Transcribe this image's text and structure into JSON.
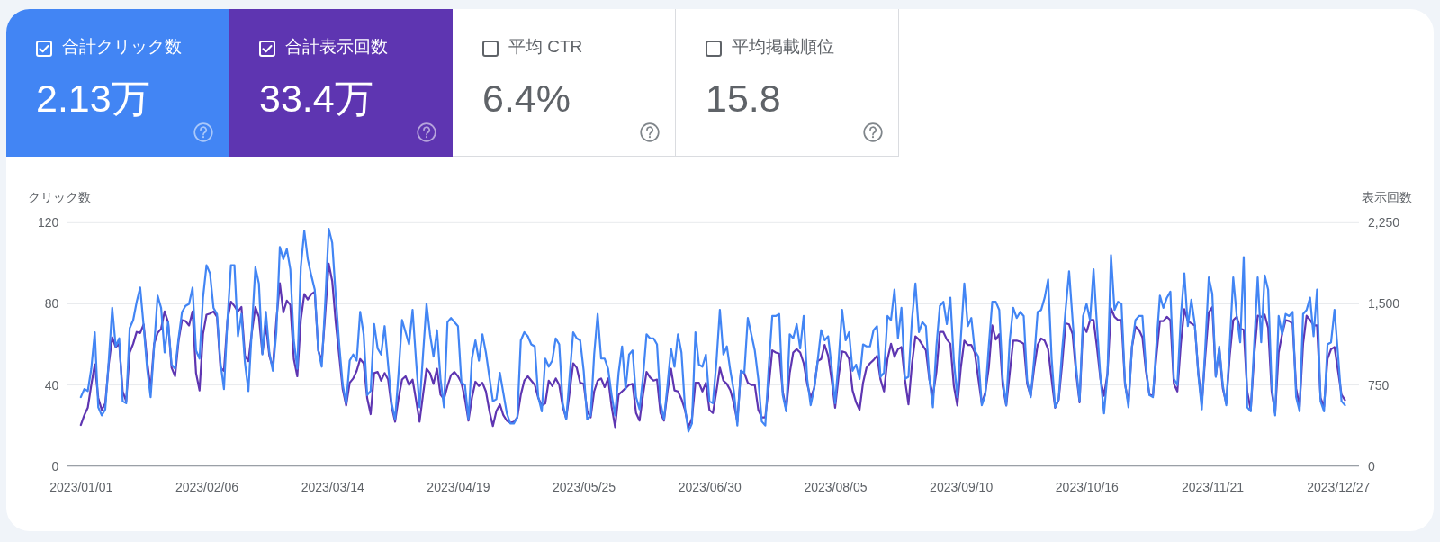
{
  "chart_data": [
    {
      "type": "other",
      "annotations": [
        "合計クリック数",
        "2.13万",
        "合計表示回数",
        "33.4万",
        "平均 CTR",
        "6.4%",
        "平均掲載順位",
        "15.8"
      ],
      "colors": [
        "#4285f4",
        "#5e35b1",
        "#ffffff",
        "#ffffff"
      ]
    },
    {
      "type": "line",
      "ylabel": "クリック数",
      "y2label": "表示回数",
      "x": [
        "2023-01-01",
        "2023-01-02",
        "2023-01-03",
        "2023-01-04",
        "2023-01-05",
        "2023-01-06",
        "2023-01-07",
        "2023-01-08",
        "2023-01-09",
        "2023-01-10",
        "2023-01-11",
        "2023-01-12",
        "2023-01-13",
        "2023-01-14",
        "2023-01-15",
        "2023-01-16",
        "2023-01-17",
        "2023-01-18",
        "2023-01-19",
        "2023-01-20",
        "2023-01-21",
        "2023-01-22",
        "2023-01-23",
        "2023-01-24",
        "2023-01-25",
        "2023-01-26",
        "2023-01-27",
        "2023-01-28",
        "2023-01-29",
        "2023-01-30",
        "2023-01-31",
        "2023-02-01",
        "2023-02-02",
        "2023-02-03",
        "2023-02-04",
        "2023-02-05",
        "2023-02-06",
        "2023-02-07",
        "2023-02-08",
        "2023-02-09",
        "2023-02-10",
        "2023-02-11",
        "2023-02-12",
        "2023-02-13",
        "2023-02-14",
        "2023-02-15",
        "2023-02-16",
        "2023-02-17",
        "2023-02-18",
        "2023-02-19",
        "2023-02-20",
        "2023-02-21",
        "2023-02-22",
        "2023-02-23",
        "2023-02-24",
        "2023-02-25",
        "2023-02-26",
        "2023-02-27",
        "2023-02-28",
        "2023-03-01",
        "2023-03-02",
        "2023-03-03",
        "2023-03-04",
        "2023-03-05",
        "2023-03-06",
        "2023-03-07",
        "2023-03-08",
        "2023-03-09",
        "2023-03-10",
        "2023-03-11",
        "2023-03-12",
        "2023-03-13",
        "2023-03-14",
        "2023-03-15",
        "2023-03-16",
        "2023-03-17",
        "2023-03-18",
        "2023-03-19",
        "2023-03-20",
        "2023-03-21",
        "2023-03-22",
        "2023-03-23",
        "2023-03-24",
        "2023-03-25",
        "2023-03-26",
        "2023-03-27",
        "2023-03-28",
        "2023-03-29",
        "2023-03-30",
        "2023-03-31",
        "2023-04-01",
        "2023-04-02",
        "2023-04-03",
        "2023-04-04",
        "2023-04-05",
        "2023-04-06",
        "2023-04-07",
        "2023-04-08",
        "2023-04-09",
        "2023-04-10",
        "2023-04-11",
        "2023-04-12",
        "2023-04-13",
        "2023-04-14",
        "2023-04-15",
        "2023-04-16",
        "2023-04-17",
        "2023-04-18",
        "2023-04-19",
        "2023-04-20",
        "2023-04-21",
        "2023-04-22",
        "2023-04-23",
        "2023-04-24",
        "2023-04-25",
        "2023-04-26",
        "2023-04-27",
        "2023-04-28",
        "2023-04-29",
        "2023-04-30",
        "2023-05-01",
        "2023-05-02",
        "2023-05-03",
        "2023-05-04",
        "2023-05-05",
        "2023-05-06",
        "2023-05-07",
        "2023-05-08",
        "2023-05-09",
        "2023-05-10",
        "2023-05-11",
        "2023-05-12",
        "2023-05-13",
        "2023-05-14",
        "2023-05-15",
        "2023-05-16",
        "2023-05-17",
        "2023-05-18",
        "2023-05-19",
        "2023-05-20",
        "2023-05-21",
        "2023-05-22",
        "2023-05-23",
        "2023-05-24",
        "2023-05-25",
        "2023-05-26",
        "2023-05-27",
        "2023-05-28",
        "2023-05-29",
        "2023-05-30",
        "2023-05-31",
        "2023-06-01",
        "2023-06-02",
        "2023-06-03",
        "2023-06-04",
        "2023-06-05",
        "2023-06-06",
        "2023-06-07",
        "2023-06-08",
        "2023-06-09",
        "2023-06-10",
        "2023-06-11",
        "2023-06-12",
        "2023-06-13",
        "2023-06-14",
        "2023-06-15",
        "2023-06-16",
        "2023-06-17",
        "2023-06-18",
        "2023-06-19",
        "2023-06-20",
        "2023-06-21",
        "2023-06-22",
        "2023-06-23",
        "2023-06-24",
        "2023-06-25",
        "2023-06-26",
        "2023-06-27",
        "2023-06-28",
        "2023-06-29",
        "2023-06-30",
        "2023-07-01",
        "2023-07-02",
        "2023-07-03",
        "2023-07-04",
        "2023-07-05",
        "2023-07-06",
        "2023-07-07",
        "2023-07-08",
        "2023-07-09",
        "2023-07-10",
        "2023-07-11",
        "2023-07-12",
        "2023-07-13",
        "2023-07-14",
        "2023-07-15",
        "2023-07-16",
        "2023-07-17",
        "2023-07-18",
        "2023-07-19",
        "2023-07-20",
        "2023-07-21",
        "2023-07-22",
        "2023-07-23",
        "2023-07-24",
        "2023-07-25",
        "2023-07-26",
        "2023-07-27",
        "2023-07-28",
        "2023-07-29",
        "2023-07-30",
        "2023-07-31",
        "2023-08-01",
        "2023-08-02",
        "2023-08-03",
        "2023-08-04",
        "2023-08-05",
        "2023-08-06",
        "2023-08-07",
        "2023-08-08",
        "2023-08-09",
        "2023-08-10",
        "2023-08-11",
        "2023-08-12",
        "2023-08-13",
        "2023-08-14",
        "2023-08-15",
        "2023-08-16",
        "2023-08-17",
        "2023-08-18",
        "2023-08-19",
        "2023-08-20",
        "2023-08-21",
        "2023-08-22",
        "2023-08-23",
        "2023-08-24",
        "2023-08-25",
        "2023-08-26",
        "2023-08-27",
        "2023-08-28",
        "2023-08-29",
        "2023-08-30",
        "2023-08-31",
        "2023-09-01",
        "2023-09-02",
        "2023-09-03",
        "2023-09-04",
        "2023-09-05",
        "2023-09-06",
        "2023-09-07",
        "2023-09-08",
        "2023-09-09",
        "2023-09-10",
        "2023-09-11",
        "2023-09-12",
        "2023-09-13",
        "2023-09-14",
        "2023-09-15",
        "2023-09-16",
        "2023-09-17",
        "2023-09-18",
        "2023-09-19",
        "2023-09-20",
        "2023-09-21",
        "2023-09-22",
        "2023-09-23",
        "2023-09-24",
        "2023-09-25",
        "2023-09-26",
        "2023-09-27",
        "2023-09-28",
        "2023-09-29",
        "2023-09-30",
        "2023-10-01",
        "2023-10-02",
        "2023-10-03",
        "2023-10-04",
        "2023-10-05",
        "2023-10-06",
        "2023-10-07",
        "2023-10-08",
        "2023-10-09",
        "2023-10-10",
        "2023-10-11",
        "2023-10-12",
        "2023-10-13",
        "2023-10-14",
        "2023-10-15",
        "2023-10-16",
        "2023-10-17",
        "2023-10-18",
        "2023-10-19",
        "2023-10-20",
        "2023-10-21",
        "2023-10-22",
        "2023-10-23",
        "2023-10-24",
        "2023-10-25",
        "2023-10-26",
        "2023-10-27",
        "2023-10-28",
        "2023-10-29",
        "2023-10-30",
        "2023-10-31",
        "2023-11-01",
        "2023-11-02",
        "2023-11-03",
        "2023-11-04",
        "2023-11-05",
        "2023-11-06",
        "2023-11-07",
        "2023-11-08",
        "2023-11-09",
        "2023-11-10",
        "2023-11-11",
        "2023-11-12",
        "2023-11-13",
        "2023-11-14",
        "2023-11-15",
        "2023-11-16",
        "2023-11-17",
        "2023-11-18",
        "2023-11-19",
        "2023-11-20",
        "2023-11-21",
        "2023-11-22",
        "2023-11-23",
        "2023-11-24",
        "2023-11-25",
        "2023-11-26",
        "2023-11-27",
        "2023-11-28",
        "2023-11-29",
        "2023-11-30",
        "2023-12-01",
        "2023-12-02",
        "2023-12-03",
        "2023-12-04",
        "2023-12-05",
        "2023-12-06",
        "2023-12-07",
        "2023-12-08",
        "2023-12-09",
        "2023-12-10",
        "2023-12-11",
        "2023-12-12",
        "2023-12-13",
        "2023-12-14",
        "2023-12-15",
        "2023-12-16",
        "2023-12-17",
        "2023-12-18",
        "2023-12-19",
        "2023-12-20",
        "2023-12-21",
        "2023-12-22",
        "2023-12-23",
        "2023-12-24",
        "2023-12-25",
        "2023-12-26",
        "2023-12-27",
        "2023-12-28",
        "2023-12-29"
      ],
      "series": [
        {
          "color": "#4285f4",
          "values": [
            34,
            38,
            37,
            48,
            66,
            29,
            25,
            28,
            52,
            78,
            59,
            63,
            32,
            31,
            68,
            72,
            81,
            88,
            69,
            48,
            34,
            59,
            84,
            78,
            56,
            71,
            50,
            48,
            63,
            76,
            79,
            80,
            88,
            57,
            53,
            83,
            99,
            95,
            78,
            75,
            51,
            38,
            72,
            99,
            99,
            64,
            75,
            51,
            37,
            68,
            98,
            90,
            55,
            76,
            56,
            47,
            66,
            108,
            102,
            107,
            97,
            62,
            48,
            98,
            116,
            102,
            94,
            87,
            57,
            49,
            81,
            117,
            110,
            84,
            60,
            40,
            31,
            52,
            55,
            52,
            76,
            65,
            35,
            37,
            70,
            58,
            55,
            69,
            50,
            31,
            23,
            46,
            72,
            66,
            60,
            77,
            52,
            29,
            55,
            80,
            65,
            54,
            67,
            43,
            29,
            71,
            73,
            71,
            69,
            41,
            40,
            23,
            53,
            62,
            52,
            65,
            56,
            44,
            32,
            33,
            46,
            36,
            26,
            21,
            21,
            24,
            62,
            66,
            64,
            60,
            59,
            34,
            27,
            53,
            49,
            52,
            63,
            60,
            31,
            23,
            45,
            66,
            63,
            62,
            47,
            23,
            25,
            55,
            75,
            53,
            53,
            48,
            35,
            25,
            46,
            59,
            38,
            55,
            57,
            34,
            28,
            44,
            65,
            63,
            63,
            60,
            31,
            23,
            40,
            58,
            49,
            65,
            56,
            29,
            17,
            21,
            66,
            50,
            49,
            55,
            32,
            31,
            51,
            77,
            55,
            59,
            47,
            37,
            20,
            47,
            46,
            73,
            65,
            57,
            43,
            22,
            20,
            49,
            74,
            74,
            75,
            35,
            27,
            65,
            63,
            70,
            58,
            74,
            43,
            30,
            38,
            52,
            67,
            62,
            64,
            49,
            31,
            52,
            77,
            62,
            66,
            47,
            50,
            43,
            60,
            59,
            59,
            67,
            69,
            44,
            46,
            74,
            72,
            87,
            63,
            78,
            43,
            44,
            72,
            90,
            66,
            71,
            69,
            43,
            29,
            59,
            79,
            81,
            70,
            83,
            52,
            34,
            63,
            90,
            69,
            73,
            57,
            54,
            30,
            35,
            59,
            81,
            81,
            77,
            43,
            30,
            62,
            78,
            73,
            76,
            74,
            42,
            34,
            53,
            76,
            77,
            83,
            92,
            53,
            29,
            33,
            57,
            77,
            96,
            72,
            49,
            32,
            74,
            80,
            72,
            97,
            69,
            43,
            26,
            46,
            104,
            77,
            81,
            80,
            41,
            29,
            59,
            72,
            74,
            74,
            49,
            35,
            34,
            60,
            84,
            78,
            83,
            86,
            43,
            40,
            74,
            95,
            69,
            82,
            70,
            45,
            28,
            59,
            93,
            85,
            44,
            59,
            40,
            30,
            60,
            93,
            74,
            61,
            103,
            29,
            27,
            60,
            93,
            61,
            94,
            87,
            40,
            25,
            74,
            65,
            75,
            74,
            76,
            34,
            27,
            75,
            77,
            83,
            64,
            87,
            32,
            27,
            60,
            61,
            77,
            55,
            32,
            30
          ]
        },
        {
          "color": "#5e35b1",
          "axis": "y2",
          "values": [
            380,
            470,
            540,
            750,
            940,
            630,
            520,
            580,
            940,
            1190,
            1100,
            1130,
            690,
            600,
            1050,
            1130,
            1240,
            1230,
            1310,
            970,
            710,
            1130,
            1230,
            1270,
            1430,
            1330,
            910,
            830,
            1160,
            1350,
            1340,
            1300,
            1430,
            860,
            700,
            1220,
            1400,
            1410,
            1430,
            1380,
            910,
            880,
            1350,
            1520,
            1480,
            1430,
            1470,
            1020,
            970,
            1240,
            1470,
            1380,
            1040,
            1300,
            1020,
            910,
            1350,
            1690,
            1420,
            1530,
            1490,
            990,
            830,
            1350,
            1590,
            1540,
            1590,
            1610,
            1070,
            970,
            1410,
            1870,
            1710,
            1330,
            1020,
            710,
            560,
            770,
            810,
            880,
            990,
            950,
            630,
            480,
            860,
            870,
            790,
            860,
            800,
            550,
            410,
            630,
            800,
            830,
            750,
            800,
            610,
            410,
            660,
            900,
            860,
            760,
            900,
            660,
            620,
            740,
            840,
            870,
            830,
            770,
            620,
            420,
            630,
            780,
            740,
            770,
            690,
            510,
            370,
            510,
            570,
            470,
            420,
            400,
            410,
            450,
            660,
            790,
            830,
            790,
            750,
            630,
            560,
            580,
            790,
            740,
            810,
            750,
            550,
            440,
            690,
            950,
            910,
            770,
            760,
            510,
            450,
            690,
            790,
            810,
            730,
            810,
            550,
            360,
            660,
            690,
            720,
            750,
            760,
            490,
            420,
            660,
            870,
            820,
            790,
            800,
            490,
            420,
            690,
            900,
            700,
            690,
            620,
            520,
            360,
            440,
            770,
            770,
            690,
            770,
            520,
            490,
            690,
            910,
            790,
            760,
            700,
            580,
            410,
            880,
            860,
            770,
            750,
            750,
            520,
            450,
            450,
            740,
            1070,
            1050,
            1040,
            690,
            520,
            860,
            1050,
            1080,
            1050,
            950,
            760,
            630,
            720,
            970,
            990,
            1120,
            1020,
            800,
            540,
            830,
            1060,
            1050,
            990,
            700,
            590,
            520,
            770,
            910,
            950,
            980,
            1020,
            800,
            690,
            990,
            1130,
            1010,
            1080,
            1100,
            800,
            570,
            940,
            1200,
            1170,
            1120,
            1070,
            800,
            650,
            870,
            1240,
            1240,
            1170,
            1130,
            740,
            560,
            910,
            1160,
            1120,
            1120,
            1050,
            810,
            580,
            680,
            910,
            1300,
            1170,
            1220,
            740,
            560,
            860,
            1160,
            1160,
            1150,
            1130,
            760,
            650,
            910,
            1120,
            1180,
            1160,
            1080,
            800,
            540,
            610,
            940,
            1320,
            1310,
            1220,
            860,
            590,
            1300,
            1240,
            1350,
            1350,
            1090,
            800,
            650,
            860,
            1460,
            1380,
            1350,
            1350,
            760,
            580,
            1100,
            1290,
            1260,
            1190,
            880,
            660,
            650,
            1020,
            1340,
            1340,
            1380,
            1350,
            760,
            690,
            1130,
            1450,
            1340,
            1320,
            1300,
            860,
            580,
            1020,
            1420,
            1470,
            830,
            1090,
            720,
            580,
            1020,
            1350,
            1380,
            1270,
            1260,
            690,
            520,
            1020,
            1390,
            1380,
            1400,
            1280,
            690,
            490,
            1050,
            1220,
            1350,
            1340,
            1320,
            720,
            550,
            1130,
            1390,
            1350,
            1300,
            1300,
            630,
            550,
            990,
            1080,
            1100,
            880,
            660,
            610
          ]
        }
      ],
      "xlim": [
        "2022-12-28",
        "2024-01-02"
      ],
      "xticks": [
        {
          "value": "2023-01-01",
          "label": "2023/01/01"
        },
        {
          "value": "2023-02-06",
          "label": "2023/02/06"
        },
        {
          "value": "2023-03-14",
          "label": "2023/03/14"
        },
        {
          "value": "2023-04-19",
          "label": "2023/04/19"
        },
        {
          "value": "2023-05-25",
          "label": "2023/05/25"
        },
        {
          "value": "2023-06-30",
          "label": "2023/06/30"
        },
        {
          "value": "2023-08-05",
          "label": "2023/08/05"
        },
        {
          "value": "2023-09-10",
          "label": "2023/09/10"
        },
        {
          "value": "2023-10-16",
          "label": "2023/10/16"
        },
        {
          "value": "2023-11-21",
          "label": "2023/11/21"
        },
        {
          "value": "2023-12-27",
          "label": "2023/12/27"
        }
      ],
      "ylim": [
        0,
        120
      ],
      "yticks": [
        0,
        40,
        80,
        120
      ],
      "y2lim": [
        0,
        2250
      ],
      "y2ticks": [
        0,
        750,
        {
          "value": 1500,
          "label": "1,500"
        },
        {
          "value": 2250,
          "label": "2,250"
        }
      ],
      "grid": "y"
    }
  ]
}
